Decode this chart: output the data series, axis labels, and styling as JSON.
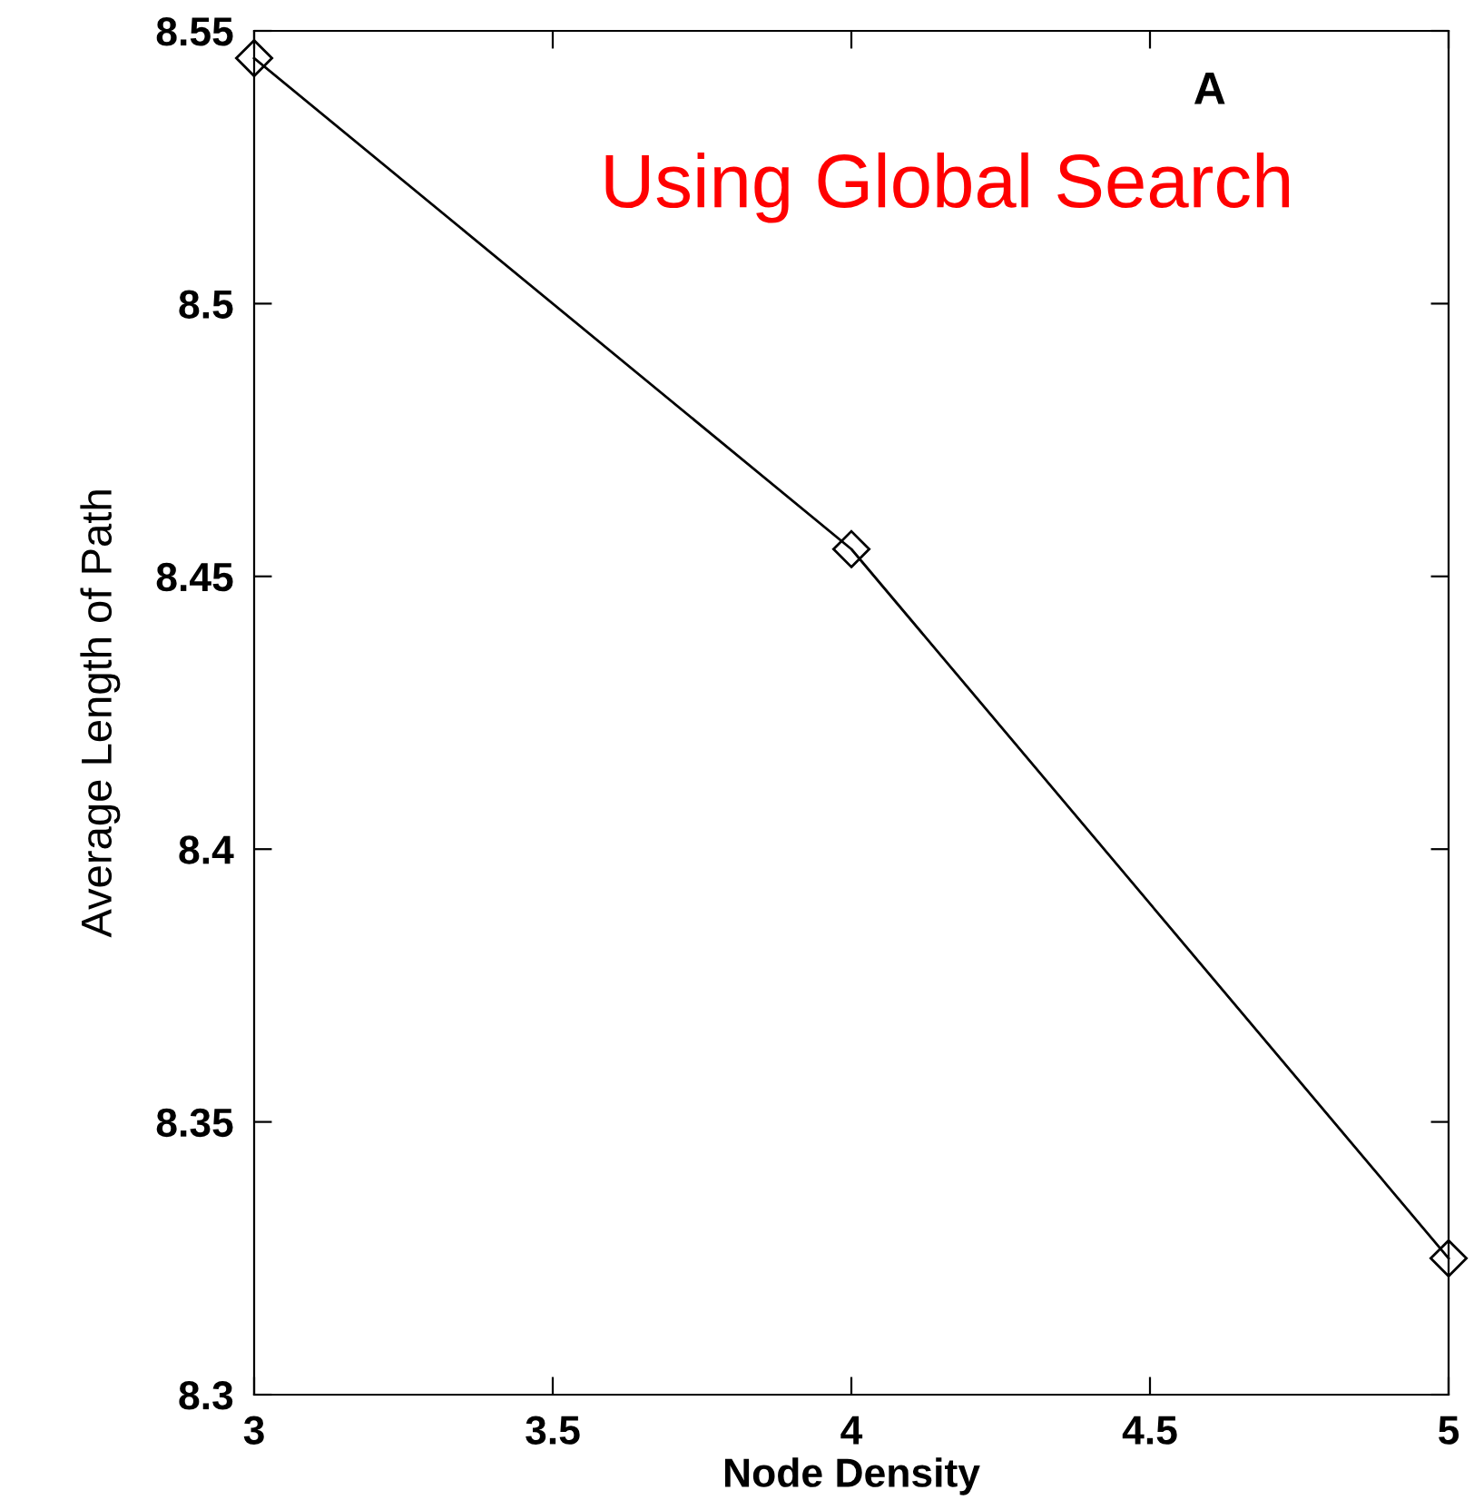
{
  "chart_data": {
    "type": "line",
    "xlabel": "Node Density",
    "ylabel": "Average Length of Path",
    "x": [
      3,
      4,
      5
    ],
    "series": [
      {
        "color": "#000000",
        "values": [
          8.545,
          8.455,
          8.325
        ]
      }
    ],
    "xlim": [
      3,
      5
    ],
    "xticks": [
      3,
      3.5,
      4,
      4.5,
      5
    ],
    "ylim": [
      8.3,
      8.55
    ],
    "yticks": [
      8.3,
      8.35,
      8.4,
      8.45,
      8.5,
      8.55
    ],
    "marker": "diamond",
    "line_style": "solid",
    "grid": false,
    "legend": false,
    "annotations": [
      "A",
      "Using Global Search"
    ]
  }
}
